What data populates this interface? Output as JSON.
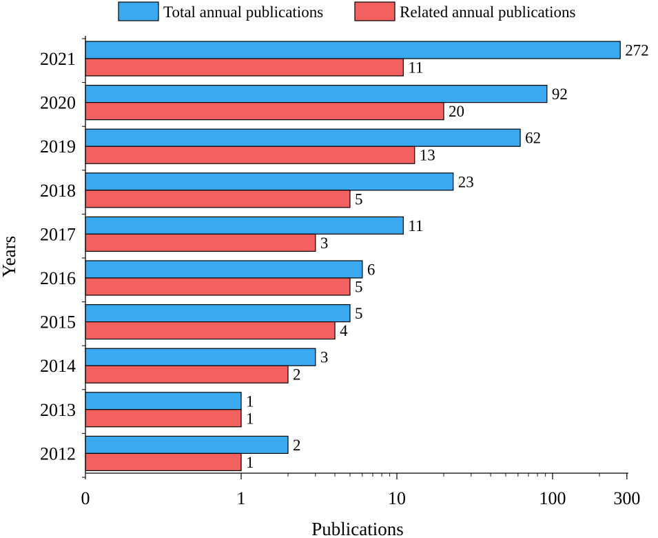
{
  "chart_data": {
    "type": "bar",
    "orientation": "horizontal",
    "categories": [
      "2021",
      "2020",
      "2019",
      "2018",
      "2017",
      "2016",
      "2015",
      "2014",
      "2013",
      "2012"
    ],
    "series": [
      {
        "name": "Total annual publications",
        "color": "#3ba9f0",
        "values": [
          272,
          92,
          62,
          23,
          11,
          6,
          5,
          3,
          1,
          2
        ]
      },
      {
        "name": "Related annual publications",
        "color": "#f26060",
        "values": [
          11,
          20,
          13,
          5,
          3,
          5,
          4,
          2,
          1,
          1
        ]
      }
    ],
    "xscale": "log",
    "xlim": [
      0,
      300
    ],
    "xticks": [
      "0",
      "1",
      "10",
      "100",
      "300"
    ],
    "xlabel": "Publications",
    "ylabel": "Years",
    "legend_position": "top",
    "grid": false
  }
}
